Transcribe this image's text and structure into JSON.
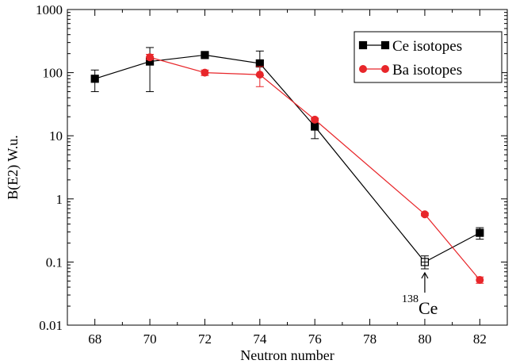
{
  "chart_data": {
    "type": "line",
    "xlabel": "Neutron number",
    "ylabel": "B(E2) W.u.",
    "xlim": [
      67,
      83
    ],
    "ylim": [
      0.01,
      1000
    ],
    "yscale": "log",
    "grid": false,
    "legend_position": "top-right",
    "x_ticks": [
      "68",
      "70",
      "72",
      "74",
      "76",
      "78",
      "80",
      "82"
    ],
    "y_ticks": [
      "0.01",
      "0.1",
      "1",
      "10",
      "100",
      "1000"
    ],
    "series": [
      {
        "name": "Ce isotopes",
        "color": "#000000",
        "marker": "square",
        "points": [
          {
            "x": 68,
            "y": 80,
            "err_low": 50,
            "err_high": 110
          },
          {
            "x": 70,
            "y": 150,
            "err_low": 50,
            "err_high": 250
          },
          {
            "x": 72,
            "y": 190,
            "err_low": 175,
            "err_high": 205
          },
          {
            "x": 74,
            "y": 140,
            "err_low": 90,
            "err_high": 220
          },
          {
            "x": 76,
            "y": 14,
            "err_low": 9,
            "err_high": 19
          },
          {
            "x": 80,
            "y": 0.1,
            "err_low": 0.078,
            "err_high": 0.125,
            "open": true
          },
          {
            "x": 82,
            "y": 0.29,
            "err_low": 0.23,
            "err_high": 0.35
          }
        ]
      },
      {
        "name": "Ba isotopes",
        "color": "#e8262a",
        "marker": "circle",
        "points": [
          {
            "x": 70,
            "y": 175,
            "err_low": 160,
            "err_high": 195
          },
          {
            "x": 72,
            "y": 100,
            "err_low": 90,
            "err_high": 110
          },
          {
            "x": 74,
            "y": 93,
            "err_low": 60,
            "err_high": 125
          },
          {
            "x": 76,
            "y": 18,
            "err_low": 17,
            "err_high": 19
          },
          {
            "x": 80,
            "y": 0.57,
            "err_low": 0.54,
            "err_high": 0.6
          },
          {
            "x": 82,
            "y": 0.052,
            "err_low": 0.046,
            "err_high": 0.058
          }
        ]
      }
    ],
    "annotation": {
      "x": 80,
      "y": 0.1,
      "superscript": "138",
      "text": "Ce"
    }
  }
}
